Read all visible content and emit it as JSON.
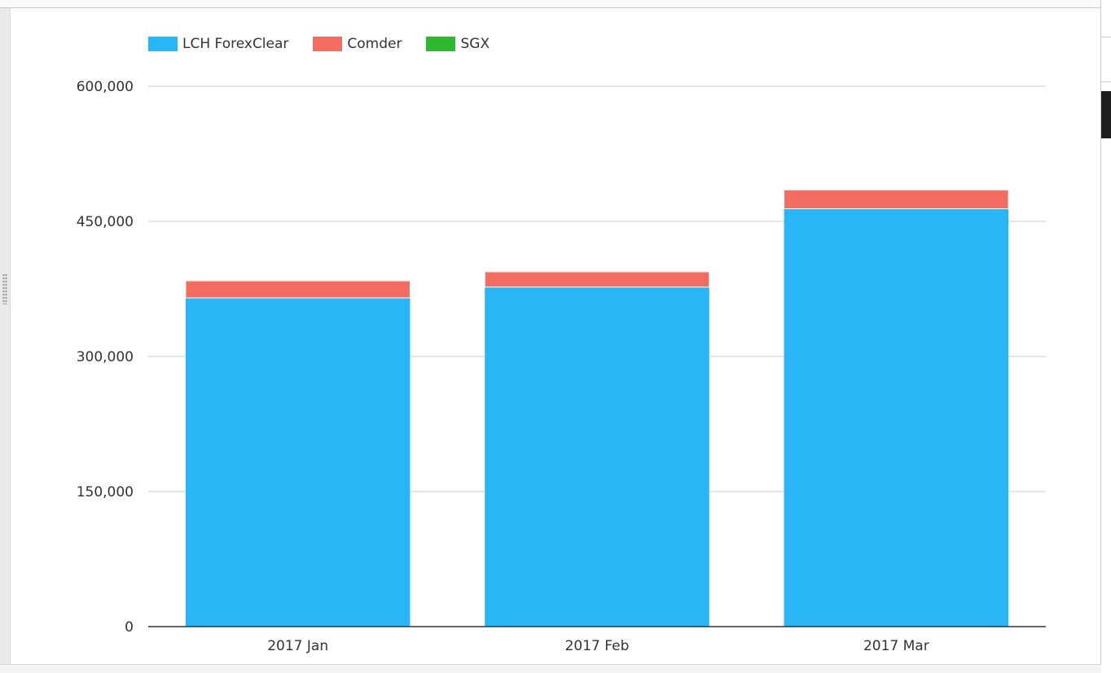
{
  "colors": {
    "lch": "#29b6f6",
    "comder": "#f26c61",
    "sgx": "#2eb82e",
    "gridline": "#cccccc",
    "axis": "#333333"
  },
  "chart_data": {
    "type": "bar",
    "stacked": true,
    "categories": [
      "2017 Jan",
      "2017 Feb",
      "2017 Mar"
    ],
    "series": [
      {
        "name": "LCH ForexClear",
        "color": "#29b6f6",
        "values": [
          365000,
          377000,
          464000
        ]
      },
      {
        "name": "Comder",
        "color": "#f26c61",
        "values": [
          19000,
          17000,
          21000
        ]
      },
      {
        "name": "SGX",
        "color": "#2eb82e",
        "values": [
          1000,
          1000,
          1000
        ]
      }
    ],
    "y_ticks": [
      "0",
      "150,000",
      "300,000",
      "450,000",
      "600,000"
    ],
    "ylim": [
      0,
      600000
    ],
    "title": "",
    "xlabel": "",
    "ylabel": "",
    "grid": true,
    "legend_position": "top-left"
  }
}
